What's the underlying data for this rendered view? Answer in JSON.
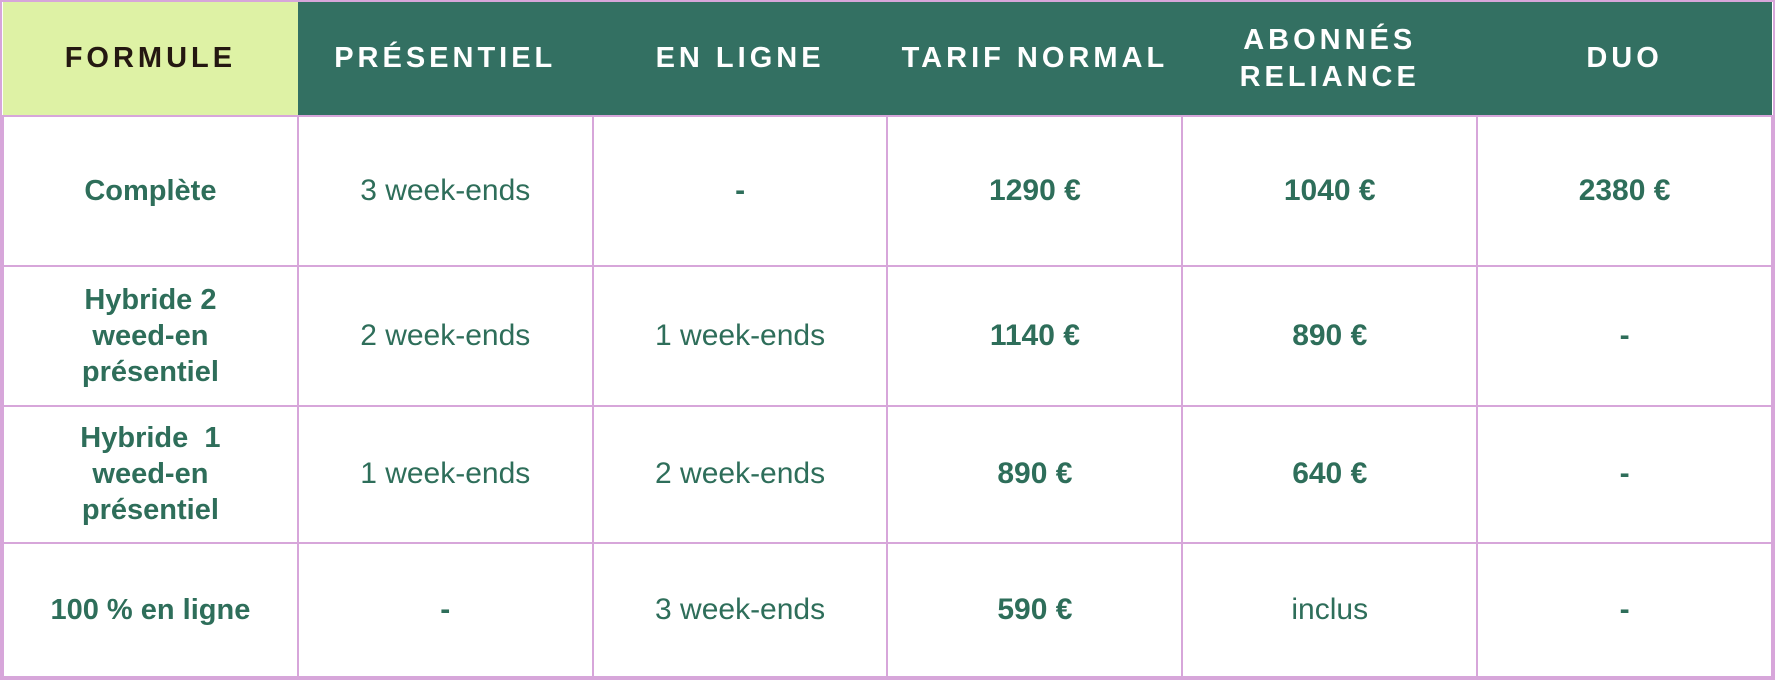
{
  "colors": {
    "header_green": "#337062",
    "formule_bg": "#def2a5",
    "border_purple": "#d7a6da",
    "text_green": "#2e6e5a",
    "formule_text": "#241811",
    "header_text": "#ffffff"
  },
  "table": {
    "columns": [
      {
        "key": "formule",
        "label": "FORMULE"
      },
      {
        "key": "presentiel",
        "label": "PRÉSENTIEL"
      },
      {
        "key": "en_ligne",
        "label": "EN LIGNE"
      },
      {
        "key": "tarif_normal",
        "label": "TARIF NORMAL"
      },
      {
        "key": "abonnes_reliance",
        "label": "ABONNÉS RELIANCE"
      },
      {
        "key": "duo",
        "label": "DUO"
      }
    ],
    "rows": [
      {
        "cells": [
          {
            "text": "Complète",
            "bold": true
          },
          {
            "text": "3 week-ends",
            "bold": false
          },
          {
            "text": "-",
            "bold": true
          },
          {
            "text": "1290 €",
            "bold": true
          },
          {
            "text": "1040 €",
            "bold": true
          },
          {
            "text": "2380 €",
            "bold": true
          }
        ]
      },
      {
        "cells": [
          {
            "text": "Hybride 2\nweed-en\nprésentiel",
            "bold": true
          },
          {
            "text": "2 week-ends",
            "bold": false
          },
          {
            "text": "1 week-ends",
            "bold": false
          },
          {
            "text": "1140 €",
            "bold": true
          },
          {
            "text": "890 €",
            "bold": true
          },
          {
            "text": "-",
            "bold": true
          }
        ]
      },
      {
        "cells": [
          {
            "text": "Hybride  1\nweed-en\nprésentiel",
            "bold": true
          },
          {
            "text": "1 week-ends",
            "bold": false
          },
          {
            "text": "2 week-ends",
            "bold": false
          },
          {
            "text": "890 €",
            "bold": true
          },
          {
            "text": "640 €",
            "bold": true
          },
          {
            "text": "-",
            "bold": true
          }
        ]
      },
      {
        "cells": [
          {
            "text": "100 % en ligne",
            "bold": true
          },
          {
            "text": "-",
            "bold": true
          },
          {
            "text": "3 week-ends",
            "bold": false
          },
          {
            "text": "590 €",
            "bold": true
          },
          {
            "text": "inclus",
            "bold": false
          },
          {
            "text": "-",
            "bold": true
          }
        ]
      }
    ]
  },
  "chart_data": {
    "type": "table",
    "columns": [
      "FORMULE",
      "PRÉSENTIEL",
      "EN LIGNE",
      "TARIF NORMAL",
      "ABONNÉS RELIANCE",
      "DUO"
    ],
    "rows": [
      [
        "Complète",
        "3 week-ends",
        "-",
        "1290 €",
        "1040 €",
        "2380 €"
      ],
      [
        "Hybride 2 weed-en présentiel",
        "2 week-ends",
        "1 week-ends",
        "1140 €",
        "890 €",
        "-"
      ],
      [
        "Hybride  1 weed-en présentiel",
        "1 week-ends",
        "2 week-ends",
        "890 €",
        "640 €",
        "-"
      ],
      [
        "100 % en ligne",
        "-",
        "3 week-ends",
        "590 €",
        "inclus",
        "-"
      ]
    ]
  }
}
